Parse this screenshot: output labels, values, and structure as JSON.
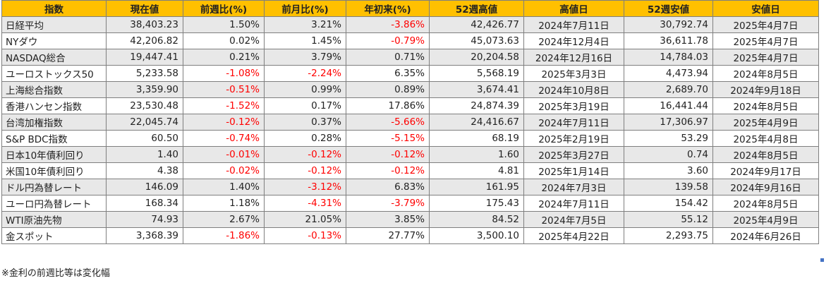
{
  "table": {
    "headers": [
      "指数",
      "現在値",
      "前週比(%)",
      "前月比(%)",
      "年初来(%)",
      "52週高値",
      "高値日",
      "52週安値",
      "安値日"
    ],
    "rows": [
      [
        "日経平均",
        "38,403.23",
        "1.50%",
        "3.21%",
        "-3.86%",
        "42,426.77",
        "2024年7月11日",
        "30,792.74",
        "2025年4月7日"
      ],
      [
        "NYダウ",
        "42,206.82",
        "0.02%",
        "1.45%",
        "-0.79%",
        "45,073.63",
        "2024年12月4日",
        "36,611.78",
        "2025年4月7日"
      ],
      [
        "NASDAQ総合",
        "19,447.41",
        "0.21%",
        "3.79%",
        "0.71%",
        "20,204.58",
        "2024年12月16日",
        "14,784.03",
        "2025年4月7日"
      ],
      [
        "ユーロストックス50",
        "5,233.58",
        "-1.08%",
        "-2.24%",
        "6.35%",
        "5,568.19",
        "2025年3月3日",
        "4,473.94",
        "2024年8月5日"
      ],
      [
        "上海総合指数",
        "3,359.90",
        "-0.51%",
        "0.99%",
        "0.89%",
        "3,674.41",
        "2024年10月8日",
        "2,689.70",
        "2024年9月18日"
      ],
      [
        "香港ハンセン指数",
        "23,530.48",
        "-1.52%",
        "0.17%",
        "17.86%",
        "24,874.39",
        "2025年3月19日",
        "16,441.44",
        "2024年8月5日"
      ],
      [
        "台湾加権指数",
        "22,045.74",
        "-0.12%",
        "0.37%",
        "-5.66%",
        "24,416.67",
        "2024年7月11日",
        "17,306.97",
        "2025年4月9日"
      ],
      [
        "S&P BDC指数",
        "60.50",
        "-0.74%",
        "0.28%",
        "-5.15%",
        "68.19",
        "2025年2月19日",
        "53.29",
        "2025年4月8日"
      ],
      [
        "日本10年債利回り",
        "1.40",
        "-0.01%",
        "-0.12%",
        "-0.12%",
        "1.60",
        "2025年3月27日",
        "0.74",
        "2024年8月5日"
      ],
      [
        "米国10年債利回り",
        "4.38",
        "-0.02%",
        "-0.12%",
        "-0.12%",
        "4.81",
        "2025年1月14日",
        "3.60",
        "2024年9月17日"
      ],
      [
        "ドル円為替レート",
        "146.09",
        "1.40%",
        "-3.12%",
        "6.83%",
        "161.95",
        "2024年7月3日",
        "139.58",
        "2024年9月16日"
      ],
      [
        "ユーロ円為替レート",
        "168.34",
        "1.18%",
        "-4.31%",
        "-3.79%",
        "175.43",
        "2024年7月11日",
        "154.42",
        "2024年8月5日"
      ],
      [
        "WTI原油先物",
        "74.93",
        "2.67%",
        "21.05%",
        "3.85%",
        "84.52",
        "2024年7月5日",
        "55.12",
        "2025年4月9日"
      ],
      [
        "金スポット",
        "3,368.39",
        "-1.86%",
        "-0.13%",
        "27.77%",
        "3,500.10",
        "2025年4月22日",
        "2,293.75",
        "2024年6月26日"
      ]
    ]
  },
  "footnote": "※金利の前週比等は変化幅",
  "colors": {
    "header_background": "#ffc000",
    "odd_row_background": "#e8e8e8",
    "even_row_background": "#ffffff",
    "negative_text": "#ff0000",
    "border": "#7f7f7f"
  }
}
